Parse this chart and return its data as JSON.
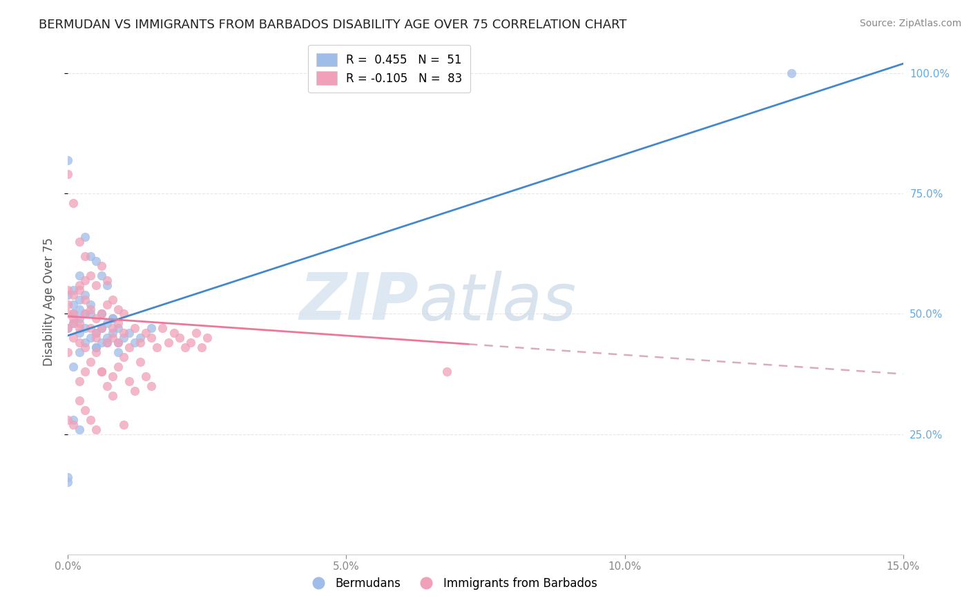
{
  "title": "BERMUDAN VS IMMIGRANTS FROM BARBADOS DISABILITY AGE OVER 75 CORRELATION CHART",
  "source": "Source: ZipAtlas.com",
  "ylabel": "Disability Age Over 75",
  "x_min": 0.0,
  "x_max": 0.15,
  "y_min": 0.0,
  "y_max": 1.05,
  "watermark_zip": "ZIP",
  "watermark_atlas": "atlas",
  "bermudans_color": "#a0bce8",
  "barbados_color": "#f0a0b8",
  "trendline_bermudans_color": "#4488cc",
  "trendline_barbados_solid_color": "#ee7799",
  "trendline_barbados_dash_color": "#ddaabb",
  "grid_color": "#e0e0e0",
  "right_tick_color": "#66aadd",
  "bermudans_x": [
    0.0,
    0.0,
    0.001,
    0.001,
    0.001,
    0.002,
    0.002,
    0.002,
    0.003,
    0.003,
    0.004,
    0.004,
    0.005,
    0.005,
    0.006,
    0.006,
    0.007,
    0.007,
    0.008,
    0.008,
    0.009,
    0.009,
    0.01,
    0.011,
    0.012,
    0.013,
    0.015,
    0.002,
    0.003,
    0.002,
    0.001,
    0.001,
    0.002,
    0.003,
    0.004,
    0.005,
    0.006,
    0.007,
    0.003,
    0.004,
    0.005,
    0.006,
    0.007,
    0.008,
    0.009,
    0.0,
    0.0,
    0.001,
    0.002,
    0.0,
    0.13
  ],
  "bermudans_y": [
    0.47,
    0.82,
    0.5,
    0.52,
    0.48,
    0.46,
    0.49,
    0.51,
    0.44,
    0.47,
    0.5,
    0.45,
    0.43,
    0.46,
    0.44,
    0.47,
    0.45,
    0.48,
    0.46,
    0.49,
    0.44,
    0.47,
    0.45,
    0.46,
    0.44,
    0.45,
    0.47,
    0.53,
    0.5,
    0.42,
    0.55,
    0.39,
    0.58,
    0.54,
    0.52,
    0.43,
    0.5,
    0.44,
    0.66,
    0.62,
    0.61,
    0.58,
    0.56,
    0.49,
    0.42,
    0.54,
    0.15,
    0.28,
    0.26,
    0.16,
    1.0
  ],
  "barbados_x": [
    0.0,
    0.0,
    0.0,
    0.0,
    0.001,
    0.001,
    0.001,
    0.001,
    0.002,
    0.002,
    0.002,
    0.003,
    0.003,
    0.003,
    0.004,
    0.004,
    0.005,
    0.005,
    0.005,
    0.006,
    0.006,
    0.007,
    0.007,
    0.008,
    0.008,
    0.009,
    0.009,
    0.01,
    0.01,
    0.011,
    0.012,
    0.013,
    0.014,
    0.015,
    0.016,
    0.017,
    0.018,
    0.019,
    0.02,
    0.021,
    0.022,
    0.023,
    0.024,
    0.025,
    0.0,
    0.001,
    0.002,
    0.003,
    0.004,
    0.005,
    0.006,
    0.007,
    0.008,
    0.009,
    0.0,
    0.001,
    0.002,
    0.003,
    0.004,
    0.005,
    0.006,
    0.007,
    0.008,
    0.009,
    0.01,
    0.011,
    0.012,
    0.013,
    0.014,
    0.015,
    0.002,
    0.003,
    0.004,
    0.005,
    0.006,
    0.008,
    0.01,
    0.002,
    0.003,
    0.0,
    0.001,
    0.002,
    0.068
  ],
  "barbados_y": [
    0.52,
    0.47,
    0.55,
    0.42,
    0.5,
    0.45,
    0.54,
    0.48,
    0.44,
    0.56,
    0.48,
    0.43,
    0.5,
    0.53,
    0.47,
    0.51,
    0.45,
    0.49,
    0.46,
    0.5,
    0.47,
    0.44,
    0.52,
    0.47,
    0.45,
    0.48,
    0.44,
    0.46,
    0.5,
    0.43,
    0.47,
    0.44,
    0.46,
    0.45,
    0.43,
    0.47,
    0.44,
    0.46,
    0.45,
    0.43,
    0.44,
    0.46,
    0.43,
    0.45,
    0.79,
    0.73,
    0.65,
    0.62,
    0.58,
    0.56,
    0.6,
    0.57,
    0.53,
    0.51,
    0.28,
    0.27,
    0.36,
    0.38,
    0.4,
    0.42,
    0.38,
    0.35,
    0.37,
    0.39,
    0.41,
    0.36,
    0.34,
    0.4,
    0.37,
    0.35,
    0.32,
    0.3,
    0.28,
    0.26,
    0.38,
    0.33,
    0.27,
    0.55,
    0.57,
    0.5,
    0.49,
    0.47,
    0.38
  ],
  "berm_trend_x0": 0.0,
  "berm_trend_y0": 0.455,
  "berm_trend_x1": 0.15,
  "berm_trend_y1": 1.02,
  "barb_trend_x0": 0.0,
  "barb_trend_y0": 0.495,
  "barb_trend_solid_x1": 0.072,
  "barb_trend_solid_y1": 0.437,
  "barb_trend_x1": 0.15,
  "barb_trend_y1": 0.375
}
